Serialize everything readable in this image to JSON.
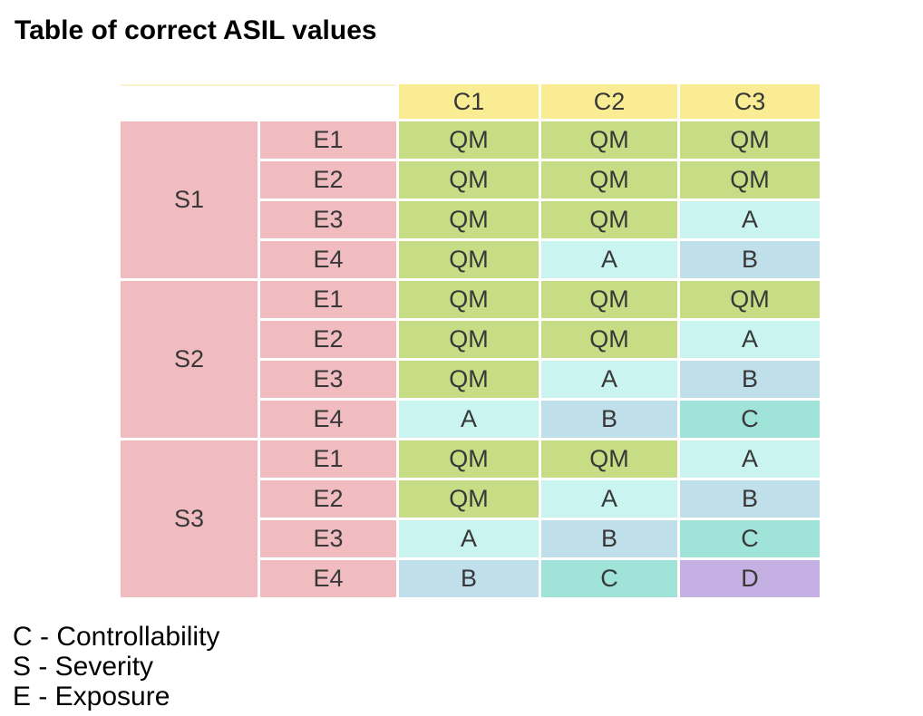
{
  "chart_data": {
    "type": "table",
    "title": "Table of correct ASIL values",
    "column_headers": [
      "C1",
      "C2",
      "C3"
    ],
    "row_groups": [
      {
        "severity": "S1",
        "rows": [
          {
            "exposure": "E1",
            "values": [
              "QM",
              "QM",
              "QM"
            ]
          },
          {
            "exposure": "E2",
            "values": [
              "QM",
              "QM",
              "QM"
            ]
          },
          {
            "exposure": "E3",
            "values": [
              "QM",
              "QM",
              "A"
            ]
          },
          {
            "exposure": "E4",
            "values": [
              "QM",
              "A",
              "B"
            ]
          }
        ]
      },
      {
        "severity": "S2",
        "rows": [
          {
            "exposure": "E1",
            "values": [
              "QM",
              "QM",
              "QM"
            ]
          },
          {
            "exposure": "E2",
            "values": [
              "QM",
              "QM",
              "A"
            ]
          },
          {
            "exposure": "E3",
            "values": [
              "QM",
              "A",
              "B"
            ]
          },
          {
            "exposure": "E4",
            "values": [
              "A",
              "B",
              "C"
            ]
          }
        ]
      },
      {
        "severity": "S3",
        "rows": [
          {
            "exposure": "E1",
            "values": [
              "QM",
              "QM",
              "A"
            ]
          },
          {
            "exposure": "E2",
            "values": [
              "QM",
              "A",
              "B"
            ]
          },
          {
            "exposure": "E3",
            "values": [
              "A",
              "B",
              "C"
            ]
          },
          {
            "exposure": "E4",
            "values": [
              "B",
              "C",
              "D"
            ]
          }
        ]
      }
    ],
    "legend": [
      "C - Controllability",
      "S - Severity",
      "E - Exposure"
    ],
    "layout": {
      "grid": "off",
      "header_row": "top",
      "merged_severity_cells": true
    }
  },
  "colors": {
    "header_yellow": "#FAEC92",
    "label_pink": "#F1BCBF",
    "qm_green": "#C6DC85",
    "a_cyan": "#C9F4EF",
    "b_blue": "#BFDFEB",
    "c_teal": "#9FE3D9",
    "d_purple": "#C4B0E2",
    "cell_text": "#383838",
    "page_background": "#FFFFFF"
  },
  "value_color_keys": {
    "QM": "qm_green",
    "A": "a_cyan",
    "B": "b_blue",
    "C": "c_teal",
    "D": "d_purple"
  }
}
